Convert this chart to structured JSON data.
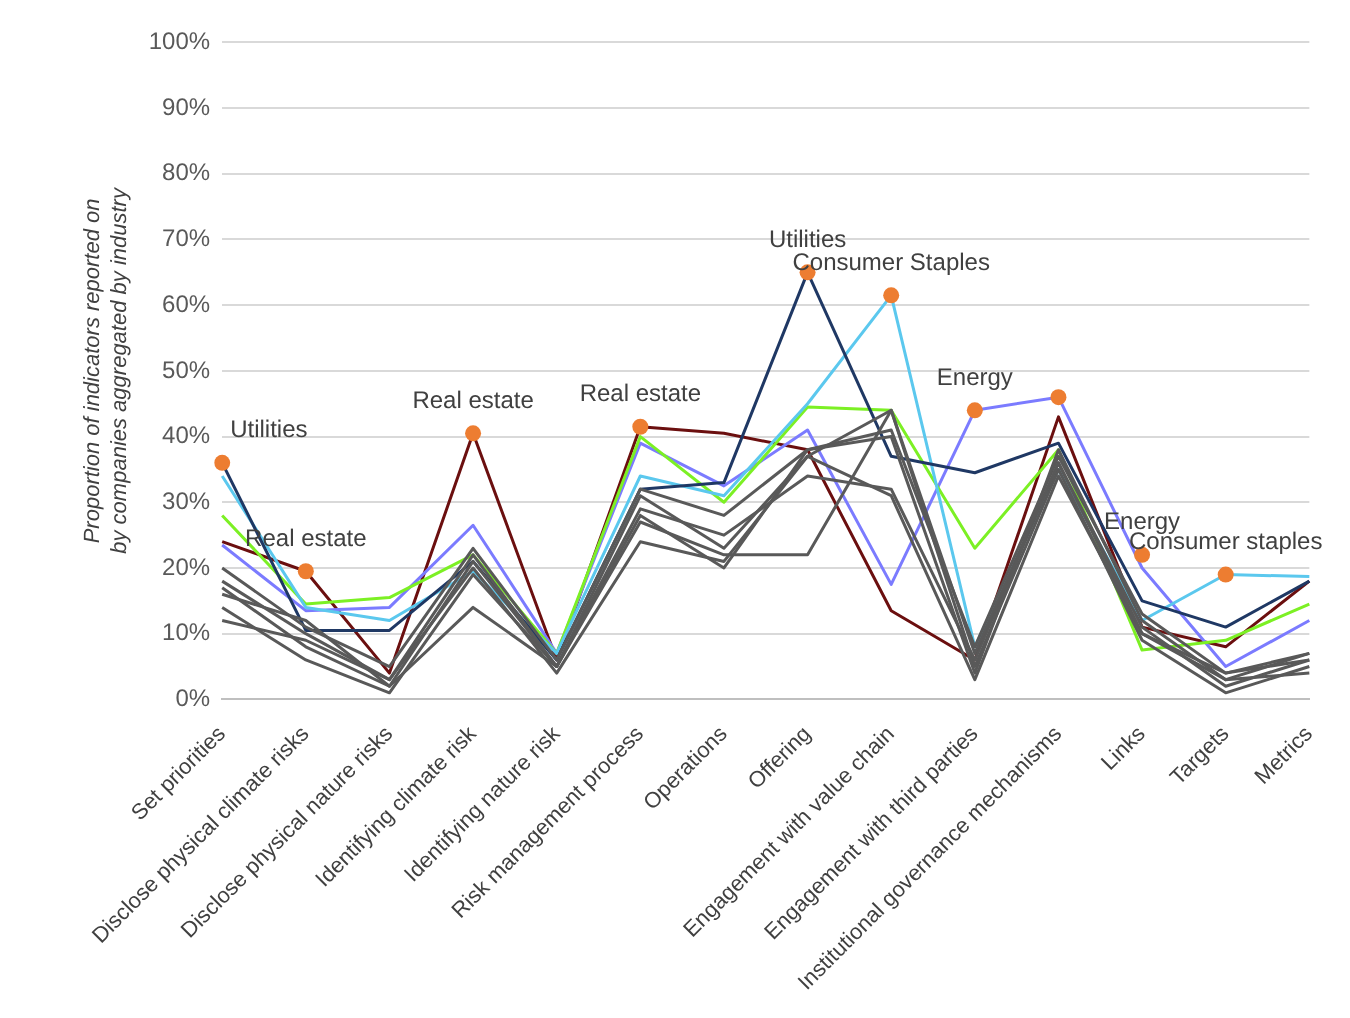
{
  "chart_data": {
    "type": "line",
    "ylabel": "Proportion of indicators reported on by companies aggregated by industry",
    "categories": [
      "Set priorities",
      "Disclose physical climate risks",
      "Disclose physical nature risks",
      "Identifying climate risk",
      "Identifying nature risk",
      "Risk management process",
      "Operations",
      "Offering",
      "Engagement with value chain",
      "Engagement with third parties",
      "Institutional governance mechanisms",
      "Links",
      "Targets",
      "Metrics"
    ],
    "ylim": [
      0,
      100
    ],
    "yticks": [
      {
        "value": 0,
        "label": "0%"
      },
      {
        "value": 10,
        "label": "10%"
      },
      {
        "value": 20,
        "label": "20%"
      },
      {
        "value": 30,
        "label": "30%"
      },
      {
        "value": 40,
        "label": "40%"
      },
      {
        "value": 50,
        "label": "50%"
      },
      {
        "value": 60,
        "label": "60%"
      },
      {
        "value": 70,
        "label": "70%"
      },
      {
        "value": 80,
        "label": "80%"
      },
      {
        "value": 90,
        "label": "90%"
      },
      {
        "value": 100,
        "label": "100%"
      }
    ],
    "grid": "y",
    "legend": false,
    "marker": "none",
    "line_style": "solid",
    "series": [
      {
        "color": "#595959",
        "values": [
          20,
          11,
          5,
          23,
          6,
          32,
          28,
          38,
          40,
          4,
          38,
          12,
          3,
          7
        ]
      },
      {
        "color": "#595959",
        "values": [
          18,
          10,
          3,
          22,
          5,
          31,
          23,
          37,
          44,
          7,
          36,
          11,
          2,
          6
        ]
      },
      {
        "color": "#595959",
        "values": [
          16,
          12,
          2,
          21,
          5,
          29,
          25,
          34,
          32,
          6,
          36,
          10,
          4,
          7
        ]
      },
      {
        "color": "#595959",
        "values": [
          14,
          6,
          1,
          19,
          5,
          27,
          22,
          22,
          44,
          5,
          35,
          9,
          1,
          5
        ]
      },
      {
        "color": "#595959",
        "values": [
          12,
          9,
          3,
          20,
          4,
          24,
          21,
          37,
          31,
          3,
          34,
          10,
          3,
          4
        ]
      },
      {
        "color": "#595959",
        "values": [
          17,
          8,
          2,
          14,
          5,
          28,
          20,
          38,
          41,
          8,
          37,
          13,
          4,
          6
        ]
      },
      {
        "color": "#1f3864",
        "values": [
          36,
          10.5,
          10.5,
          21,
          6,
          32,
          33,
          65,
          37,
          34.5,
          39,
          15,
          11,
          18
        ]
      },
      {
        "color": "#5bc8ee",
        "values": [
          34,
          14,
          12,
          19.5,
          7,
          34,
          31,
          45,
          61.5,
          8,
          35,
          12,
          19,
          18.7
        ]
      },
      {
        "color": "#7cf024",
        "values": [
          28,
          14.5,
          15.5,
          22,
          7,
          40,
          30,
          44.5,
          44,
          23,
          38,
          7.5,
          9,
          14.5
        ]
      },
      {
        "color": "#7b7bff",
        "values": [
          23.5,
          13.5,
          14,
          26.5,
          7,
          39,
          32.5,
          41,
          17.5,
          44,
          46,
          20,
          5,
          12
        ]
      },
      {
        "color": "#6b0f0f",
        "values": [
          24,
          19.5,
          4,
          40.5,
          6,
          41.5,
          40.5,
          38,
          13.5,
          6,
          43,
          11,
          8,
          18
        ]
      },
      {
        "type": "scatter",
        "marker": "circle",
        "color": "#ed7d31",
        "values": [
          36,
          19.5,
          null,
          40.5,
          null,
          41.5,
          null,
          65,
          61.5,
          44,
          46,
          22,
          19,
          null
        ]
      }
    ],
    "annotations": [
      {
        "text": "Utilities",
        "x": "Set priorities",
        "y": 36
      },
      {
        "text": "Real estate",
        "x": "Disclose physical climate risks",
        "y": 19.5
      },
      {
        "text": "Real estate",
        "x": "Identifying climate risk",
        "y": 40.5
      },
      {
        "text": "Real estate",
        "x": "Risk management process",
        "y": 41.5
      },
      {
        "text": "Utilities",
        "x": "Offering",
        "y": 65
      },
      {
        "text": "Consumer Staples",
        "x": "Engagement with value chain",
        "y": 61.5
      },
      {
        "text": "Energy",
        "x": "Engagement with third parties",
        "y": 44
      },
      {
        "text": "Energy",
        "x": "Links",
        "y": 22
      },
      {
        "text": "Consumer staples",
        "x": "Targets",
        "y": 19
      }
    ]
  }
}
